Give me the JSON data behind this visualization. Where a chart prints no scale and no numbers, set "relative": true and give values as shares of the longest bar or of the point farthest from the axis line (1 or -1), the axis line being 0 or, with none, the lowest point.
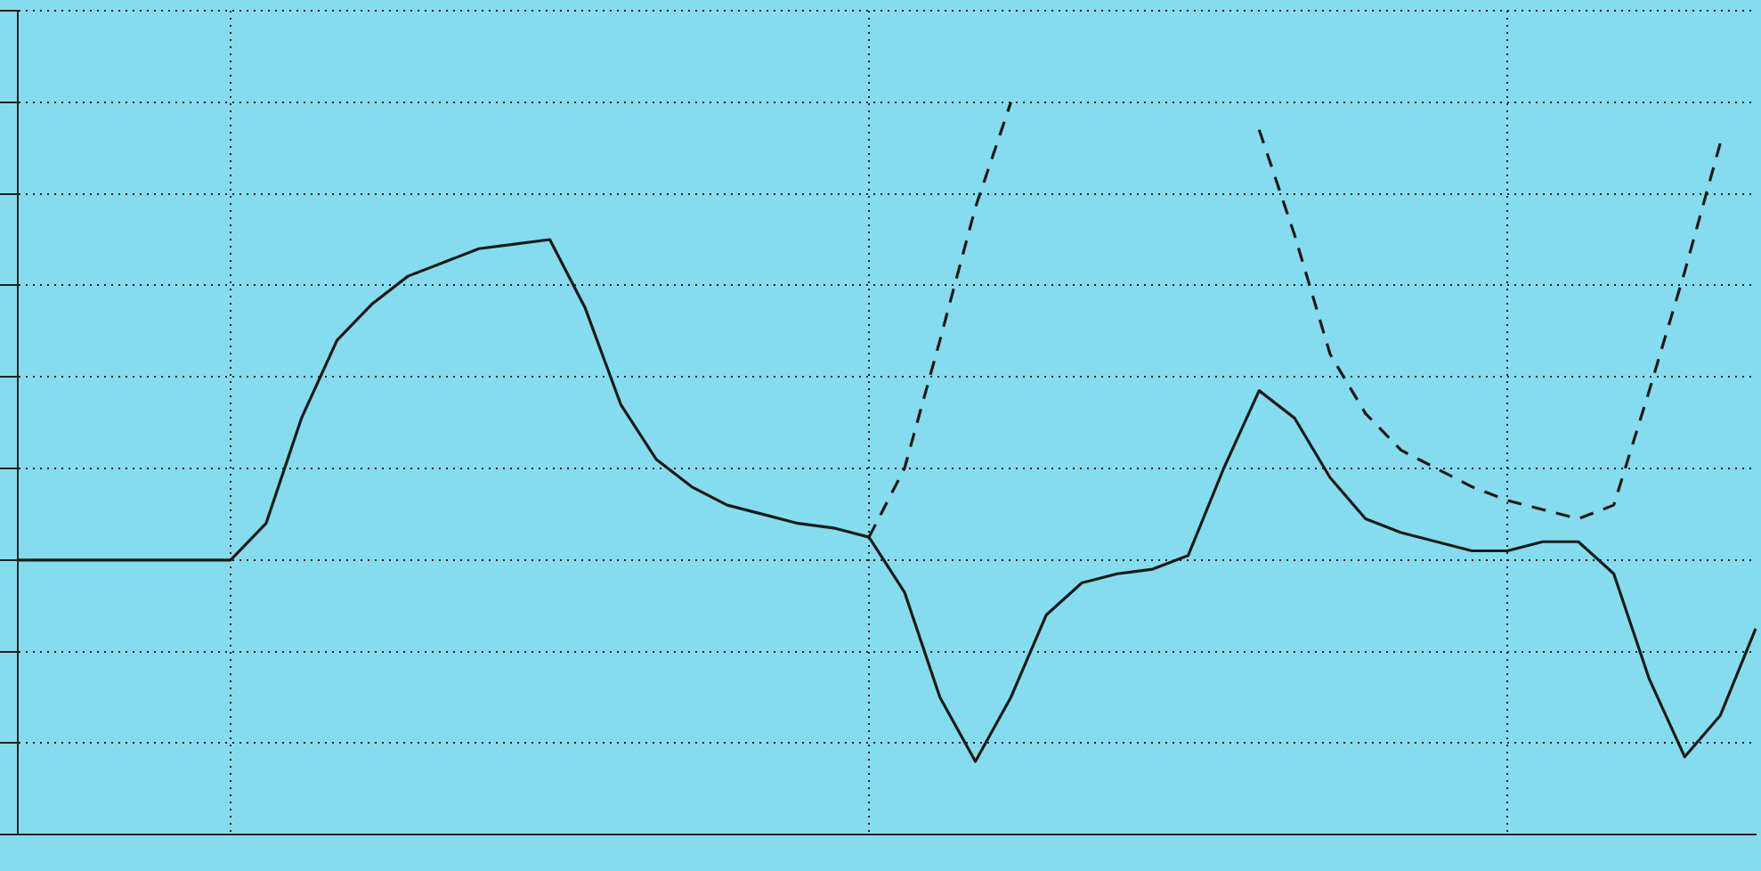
{
  "chart_data": {
    "type": "line",
    "relative": true,
    "grid": true,
    "marker": "none",
    "categories": [
      null,
      null,
      null,
      null,
      null,
      null,
      null,
      null,
      null,
      null,
      null,
      null,
      null,
      null,
      null,
      null,
      null,
      null,
      null,
      null,
      null,
      null,
      null,
      null,
      null,
      null,
      null,
      null,
      null,
      null,
      null,
      null,
      null,
      null,
      null,
      null,
      null,
      null,
      null,
      null,
      null,
      null,
      null,
      null,
      null,
      null,
      null,
      null,
      null,
      null
    ],
    "series": [
      {
        "color": "#1a1a1a",
        "line_style": "solid",
        "values": [
          0,
          0,
          0,
          0,
          0,
          0,
          0,
          0.08,
          0.31,
          0.48,
          0.56,
          0.62,
          0.65,
          0.68,
          0.69,
          0.7,
          0.55,
          0.34,
          0.22,
          0.16,
          0.12,
          0.1,
          0.08,
          0.07,
          0.05,
          -0.07,
          -0.3,
          -0.44,
          -0.3,
          -0.12,
          -0.05,
          -0.03,
          -0.02,
          0.01,
          0.2,
          0.37,
          0.31,
          0.18,
          0.09,
          0.06,
          0.04,
          0.02,
          0.02,
          0.04,
          0.04,
          -0.03,
          -0.26,
          -0.43,
          -0.34,
          -0.15
        ]
      },
      {
        "color": "#1a1a1a",
        "line_style": "dashed",
        "values": [
          null,
          null,
          null,
          null,
          null,
          null,
          null,
          null,
          null,
          null,
          null,
          null,
          null,
          null,
          null,
          null,
          null,
          null,
          null,
          null,
          null,
          null,
          null,
          null,
          0.05,
          0.2,
          0.48,
          0.77,
          1.0,
          null,
          null,
          null,
          null,
          null,
          null,
          0.94,
          0.71,
          0.45,
          0.32,
          0.24,
          0.2,
          0.16,
          0.13,
          0.11,
          0.09,
          0.12,
          0.37,
          0.63,
          0.91,
          null
        ]
      }
    ]
  }
}
